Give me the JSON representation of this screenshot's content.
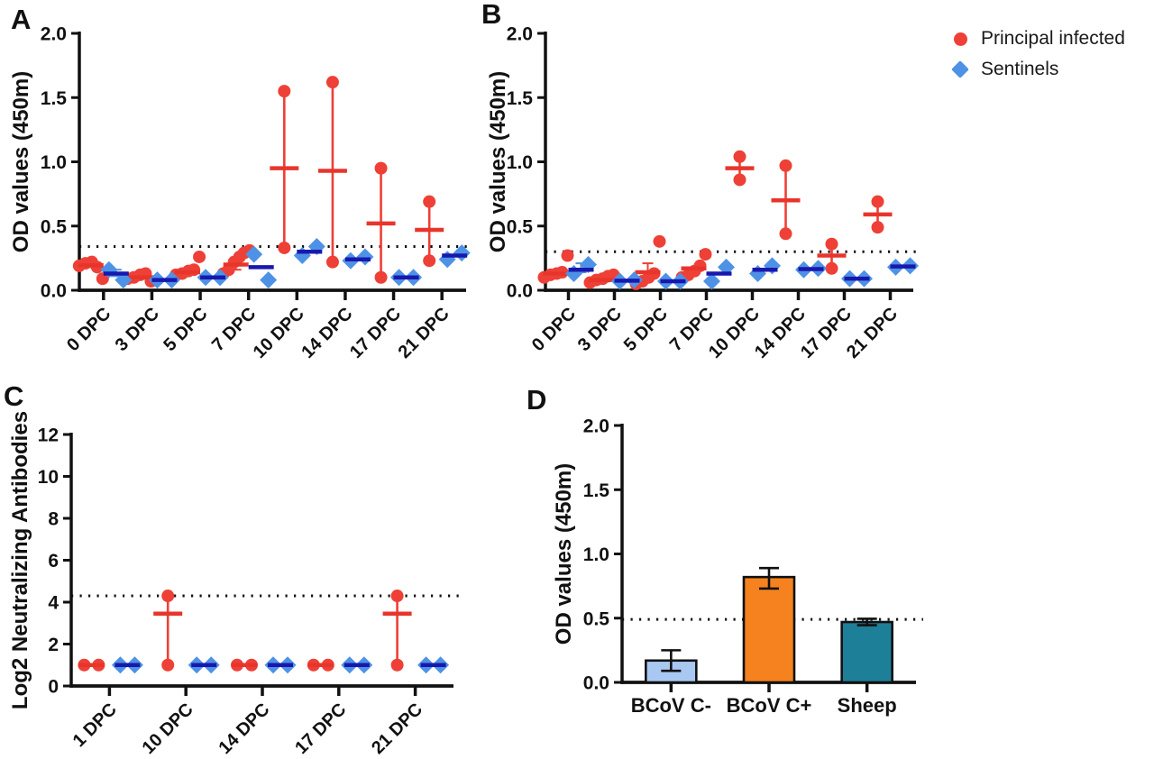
{
  "figure": {
    "background": "#ffffff",
    "legend": {
      "items": [
        {
          "label": "Principal infected",
          "marker": "circle-icon",
          "color": "#EE4036"
        },
        {
          "label": "Sentinels",
          "marker": "diamond-icon",
          "color": "#4E92E6"
        }
      ]
    }
  },
  "chart_data": [
    {
      "panel_label": "A",
      "type": "scatter",
      "ylabel": "OD values (450m)",
      "ylim": [
        0,
        2
      ],
      "yticks": [
        0,
        0.5,
        1,
        1.5,
        2
      ],
      "ytick_labels": [
        "0.0",
        "0.5",
        "1.0",
        "1.5",
        "2.0"
      ],
      "threshold": 0.34,
      "grid": false,
      "legend_position": "top-right",
      "categories": [
        "0 DPC",
        "3 DPC",
        "5 DPC",
        "7 DPC",
        "10 DPC",
        "14 DPC",
        "17 DPC",
        "21 DPC"
      ],
      "series": [
        {
          "name": "Principal infected",
          "marker": "circle",
          "color": "#EE4036",
          "median_color": "#E8352C",
          "data": [
            {
              "v": [
                0.19,
                0.21,
                0.22,
                0.18,
                0.09
              ],
              "m": 0.195
            },
            {
              "v": [
                0.09,
                0.1,
                0.12,
                0.13,
                0.07
              ],
              "m": 0.1
            },
            {
              "v": [
                0.12,
                0.13,
                0.15,
                0.16,
                0.26
              ],
              "m": 0.14
            },
            {
              "v": [
                0.13,
                0.16,
                0.22,
                0.26,
                0.29,
                0.31
              ],
              "m": 0.2,
              "whisker": [
                0.16,
                0.24
              ]
            },
            {
              "v": [
                1.55,
                0.33
              ],
              "m": 0.95,
              "line": true
            },
            {
              "v": [
                1.62,
                0.22
              ],
              "m": 0.93,
              "line": true
            },
            {
              "v": [
                0.95,
                0.1
              ],
              "m": 0.52,
              "line": true
            },
            {
              "v": [
                0.69,
                0.23
              ],
              "m": 0.47,
              "line": true
            }
          ]
        },
        {
          "name": "Sentinels",
          "marker": "diamond",
          "color": "#4E92E6",
          "median_color": "#1818AE",
          "data": [
            {
              "v": [
                0.16,
                0.08
              ],
              "m": 0.13,
              "whisker": [
                0.11,
                0.16
              ]
            },
            {
              "v": [
                0.08,
                0.08
              ],
              "m": 0.08
            },
            {
              "v": [
                0.1,
                0.1
              ],
              "m": 0.1
            },
            {
              "v": [
                0.28,
                0.08
              ],
              "m": 0.18
            },
            {
              "v": [
                0.27,
                0.34
              ],
              "m": 0.3
            },
            {
              "v": [
                0.23,
                0.26
              ],
              "m": 0.24
            },
            {
              "v": [
                0.1,
                0.1
              ],
              "m": 0.1
            },
            {
              "v": [
                0.24,
                0.29
              ],
              "m": 0.27
            }
          ]
        }
      ]
    },
    {
      "panel_label": "B",
      "type": "scatter",
      "ylabel": "OD values (450m)",
      "ylim": [
        0,
        2
      ],
      "yticks": [
        0,
        0.5,
        1,
        1.5,
        2
      ],
      "ytick_labels": [
        "0.0",
        "0.5",
        "1.0",
        "1.5",
        "2.0"
      ],
      "threshold": 0.3,
      "grid": false,
      "categories": [
        "0 DPC",
        "3 DPC",
        "5 DPC",
        "7 DPC",
        "10 DPC",
        "14 DPC",
        "17 DPC",
        "21 DPC"
      ],
      "series": [
        {
          "name": "Principal infected",
          "marker": "circle",
          "color": "#EE4036",
          "median_color": "#E8352C",
          "data": [
            {
              "v": [
                0.1,
                0.12,
                0.13,
                0.14,
                0.27
              ],
              "m": 0.13
            },
            {
              "v": [
                0.06,
                0.08,
                0.09,
                0.11,
                0.12
              ],
              "m": 0.08
            },
            {
              "v": [
                0.05,
                0.07,
                0.1,
                0.13,
                0.38
              ],
              "m": 0.14,
              "whisker": [
                0.1,
                0.21
              ]
            },
            {
              "v": [
                0.1,
                0.12,
                0.15,
                0.19,
                0.28
              ],
              "m": 0.17
            },
            {
              "v": [
                1.04,
                0.86
              ],
              "m": 0.95,
              "line": true
            },
            {
              "v": [
                0.97,
                0.44
              ],
              "m": 0.7,
              "line": true
            },
            {
              "v": [
                0.36,
                0.17
              ],
              "m": 0.27,
              "line": true
            },
            {
              "v": [
                0.69,
                0.49
              ],
              "m": 0.59,
              "line": true
            }
          ]
        },
        {
          "name": "Sentinels",
          "marker": "diamond",
          "color": "#4E92E6",
          "median_color": "#1818AE",
          "data": [
            {
              "v": [
                0.13,
                0.2
              ],
              "m": 0.16,
              "whisker": [
                0.14,
                0.21
              ]
            },
            {
              "v": [
                0.07,
                0.08
              ],
              "m": 0.075
            },
            {
              "v": [
                0.07,
                0.07
              ],
              "m": 0.07
            },
            {
              "v": [
                0.07,
                0.18
              ],
              "m": 0.13
            },
            {
              "v": [
                0.13,
                0.19
              ],
              "m": 0.16
            },
            {
              "v": [
                0.16,
                0.17
              ],
              "m": 0.165
            },
            {
              "v": [
                0.09,
                0.09
              ],
              "m": 0.09
            },
            {
              "v": [
                0.18,
                0.19
              ],
              "m": 0.185
            }
          ]
        }
      ]
    },
    {
      "panel_label": "C",
      "type": "scatter",
      "ylabel": "Log2 Neutralizing Antibodies",
      "ylim": [
        0,
        12
      ],
      "yticks": [
        0,
        2,
        4,
        6,
        8,
        10,
        12
      ],
      "ytick_labels": [
        "0",
        "2",
        "4",
        "6",
        "8",
        "10",
        "12"
      ],
      "threshold": 4.3,
      "grid": false,
      "categories": [
        "1 DPC",
        "10 DPC",
        "14 DPC",
        "17 DPC",
        "21 DPC"
      ],
      "series": [
        {
          "name": "Principal infected",
          "marker": "circle",
          "color": "#EE4036",
          "median_color": "#E8352C",
          "data": [
            {
              "v": [
                1,
                1
              ],
              "m": 1
            },
            {
              "v": [
                4.3,
                1
              ],
              "m": 3.45,
              "line": true
            },
            {
              "v": [
                1,
                1
              ],
              "m": 1
            },
            {
              "v": [
                1,
                1
              ],
              "m": 1
            },
            {
              "v": [
                4.3,
                1
              ],
              "m": 3.45,
              "line": true
            }
          ]
        },
        {
          "name": "Sentinels",
          "marker": "diamond",
          "color": "#4E92E6",
          "median_color": "#1818AE",
          "data": [
            {
              "v": [
                1,
                1
              ],
              "m": 1
            },
            {
              "v": [
                1,
                1
              ],
              "m": 1
            },
            {
              "v": [
                1,
                1
              ],
              "m": 1
            },
            {
              "v": [
                1,
                1
              ],
              "m": 1
            },
            {
              "v": [
                1,
                1
              ],
              "m": 1
            }
          ]
        }
      ]
    },
    {
      "panel_label": "D",
      "type": "bar",
      "ylabel": "OD values (450m)",
      "ylim": [
        0,
        2
      ],
      "yticks": [
        0,
        0.5,
        1,
        1.5,
        2
      ],
      "ytick_labels": [
        "0.0",
        "0.5",
        "1.0",
        "1.5",
        "2.0"
      ],
      "threshold": 0.49,
      "grid": false,
      "categories": [
        "BCoV C-",
        "BCoV C+",
        "Sheep"
      ],
      "values": [
        0.17,
        0.82,
        0.47
      ],
      "errors": [
        [
          0.09,
          0.25
        ],
        [
          0.73,
          0.89
        ],
        [
          0.445,
          0.495
        ]
      ],
      "bar_colors": [
        "#A8C8F2",
        "#F5821F",
        "#1E7F99"
      ]
    }
  ]
}
